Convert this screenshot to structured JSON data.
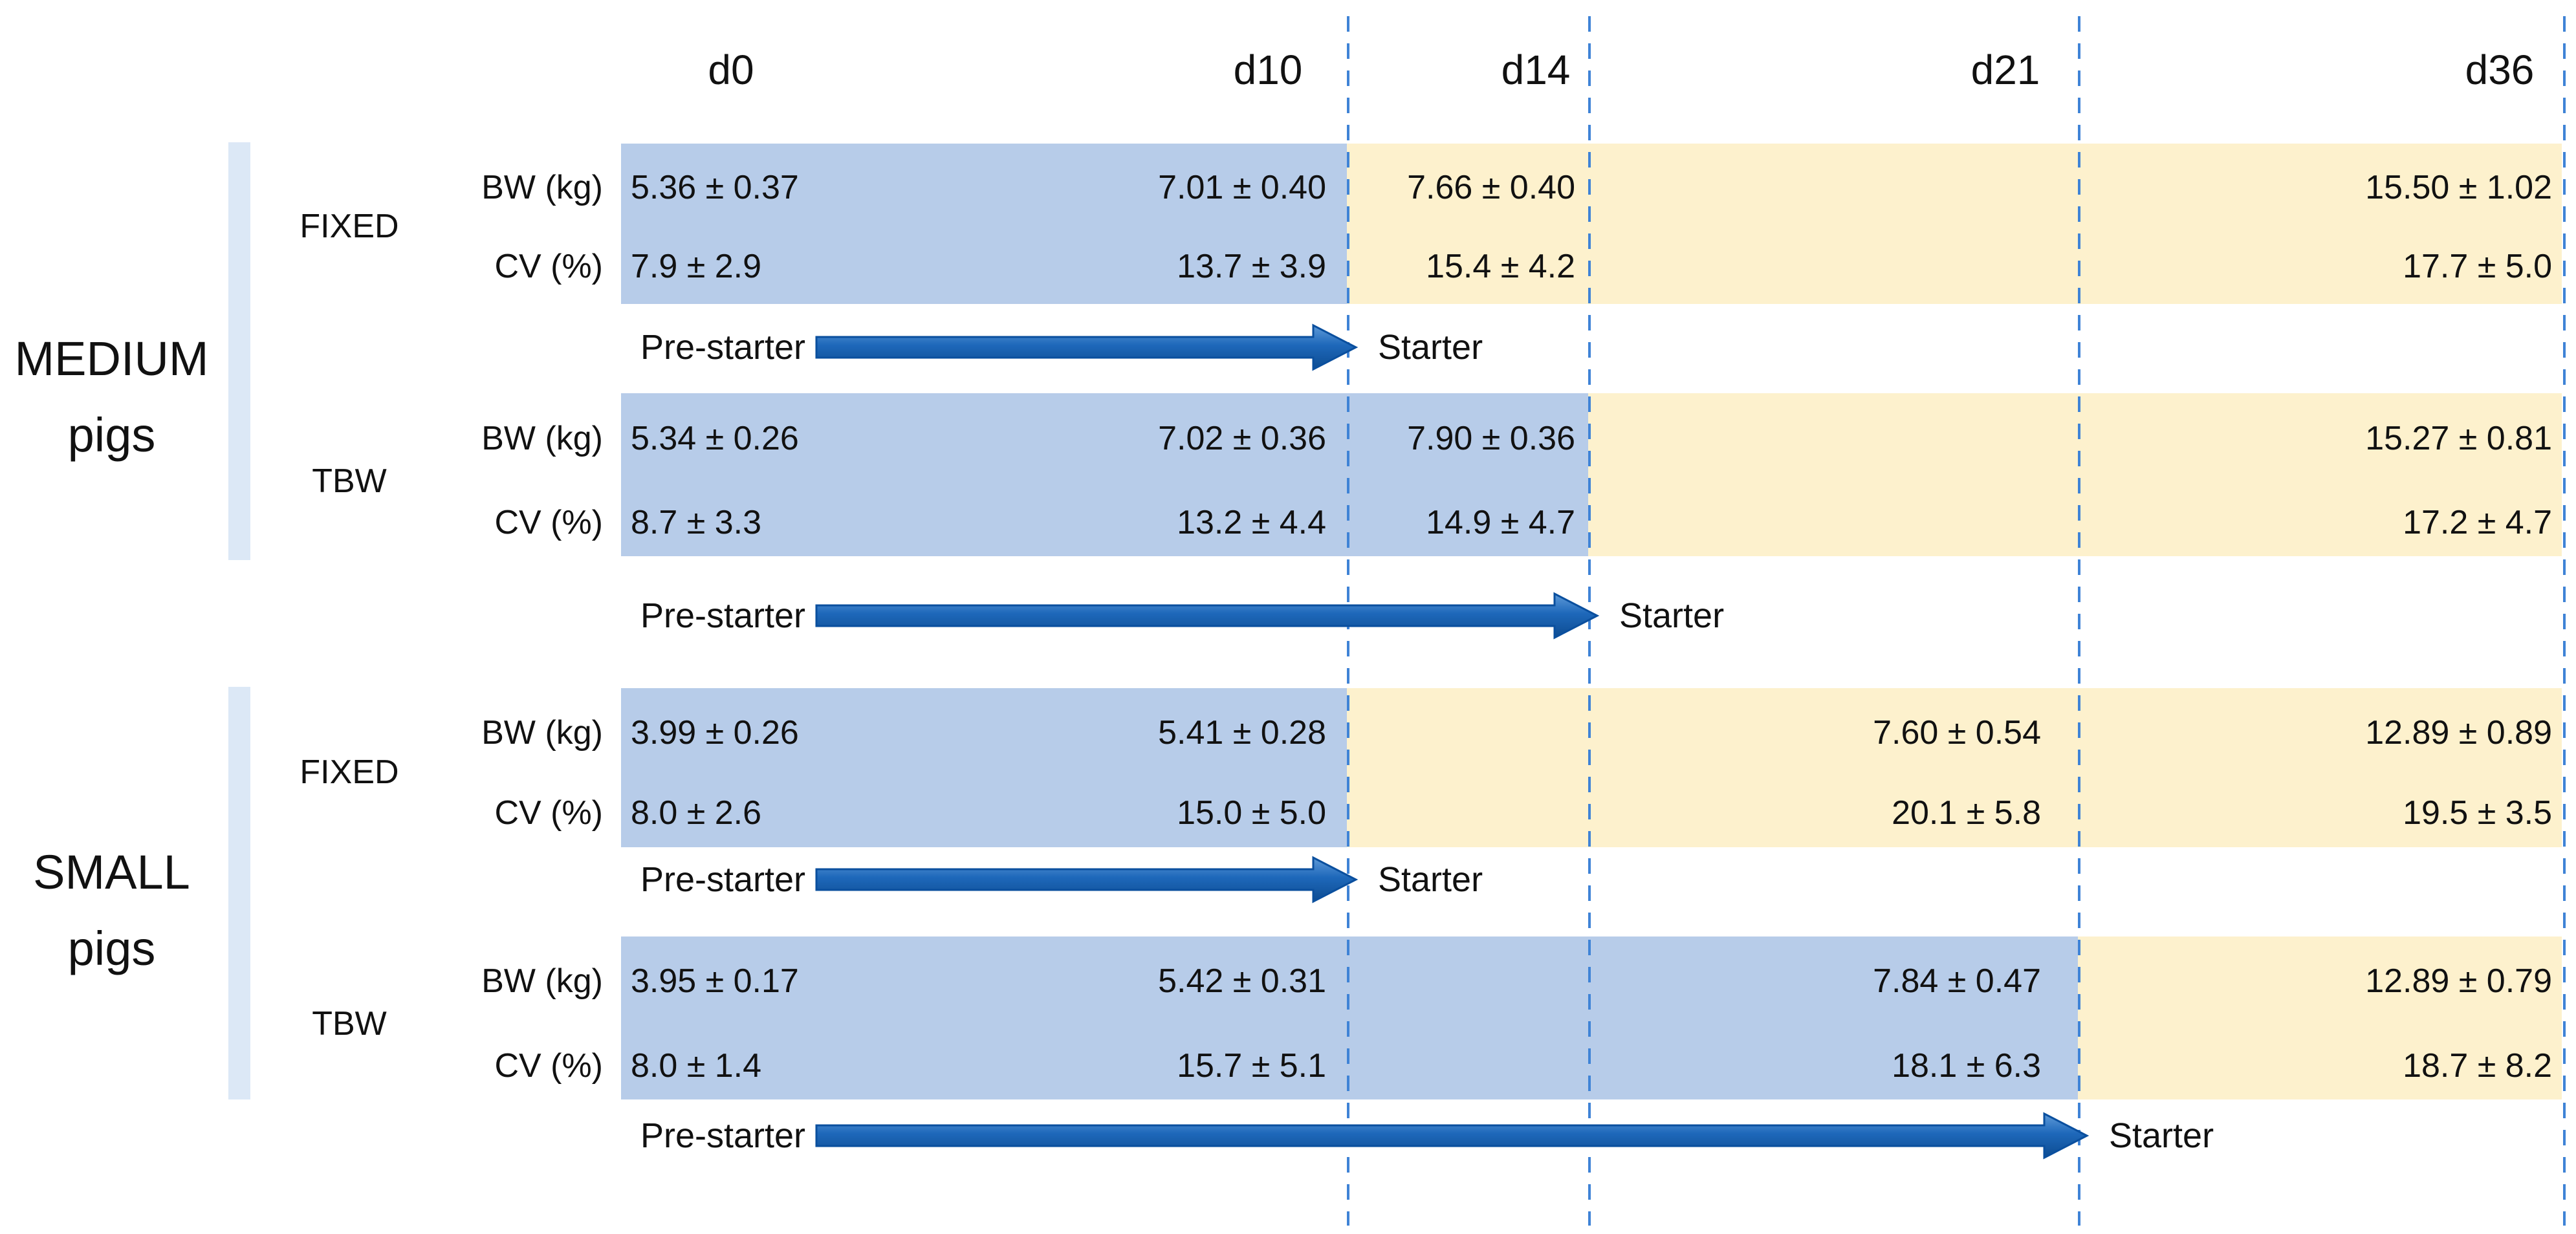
{
  "figure": {
    "description": "Experimental design timeline with body weight (BW) and coefficient of variation (CV) of MEDIUM and SMALL pigs under FIXED and TBW feeding programs, showing Pre-starter to Starter diet transitions"
  },
  "days": [
    "d0",
    "d10",
    "d14",
    "d21",
    "d36"
  ],
  "row_labels": {
    "bw": "BW (kg)",
    "cv": "CV (%)"
  },
  "diet": {
    "pre": "Pre-starter",
    "post": "Starter"
  },
  "colors": {
    "pre_starter_band": "#b7cce9",
    "starter_band": "#fdf1cd",
    "arrow_top": "#5e9ad8",
    "arrow_mid": "#1e68ba",
    "arrow_bottom": "#0d4c92",
    "arrow_stroke": "#0a4f9e",
    "dashed_line": "#3f83d6",
    "bracket": "#dce8f6",
    "text": "#111111"
  },
  "groups": [
    {
      "label_line1": "MEDIUM",
      "label_line2": "pigs",
      "subgroups": [
        {
          "name": "FIXED",
          "starter_from": "d10",
          "bw": {
            "d0": "5.36 ± 0.37",
            "d10": "7.01 ± 0.40",
            "d14": "7.66 ± 0.40",
            "d21": "",
            "d36": "15.50 ± 1.02"
          },
          "cv": {
            "d0": "7.9 ± 2.9",
            "d10": "13.7 ± 3.9",
            "d14": "15.4 ± 4.2",
            "d21": "",
            "d36": "17.7 ± 5.0"
          }
        },
        {
          "name": "TBW",
          "starter_from": "d14",
          "bw": {
            "d0": "5.34 ± 0.26",
            "d10": "7.02 ± 0.36",
            "d14": "7.90 ± 0.36",
            "d21": "",
            "d36": "15.27 ± 0.81"
          },
          "cv": {
            "d0": "8.7 ± 3.3",
            "d10": "13.2 ± 4.4",
            "d14": "14.9 ± 4.7",
            "d21": "",
            "d36": "17.2 ± 4.7"
          }
        }
      ]
    },
    {
      "label_line1": "SMALL",
      "label_line2": "pigs",
      "subgroups": [
        {
          "name": "FIXED",
          "starter_from": "d10",
          "bw": {
            "d0": "3.99 ± 0.26",
            "d10": "5.41 ± 0.28",
            "d14": "",
            "d21": "7.60 ± 0.54",
            "d36": "12.89 ± 0.89"
          },
          "cv": {
            "d0": "8.0 ± 2.6",
            "d10": "15.0 ± 5.0",
            "d14": "",
            "d21": "20.1 ± 5.8",
            "d36": "19.5 ± 3.5"
          }
        },
        {
          "name": "TBW",
          "starter_from": "d21",
          "bw": {
            "d0": "3.95 ± 0.17",
            "d10": "5.42 ± 0.31",
            "d14": "",
            "d21": "7.84 ± 0.47",
            "d36": "12.89 ± 0.79"
          },
          "cv": {
            "d0": "8.0 ± 1.4",
            "d10": "15.7 ± 5.1",
            "d14": "",
            "d21": "18.1 ± 6.3",
            "d36": "18.7 ± 8.2"
          }
        }
      ]
    }
  ]
}
